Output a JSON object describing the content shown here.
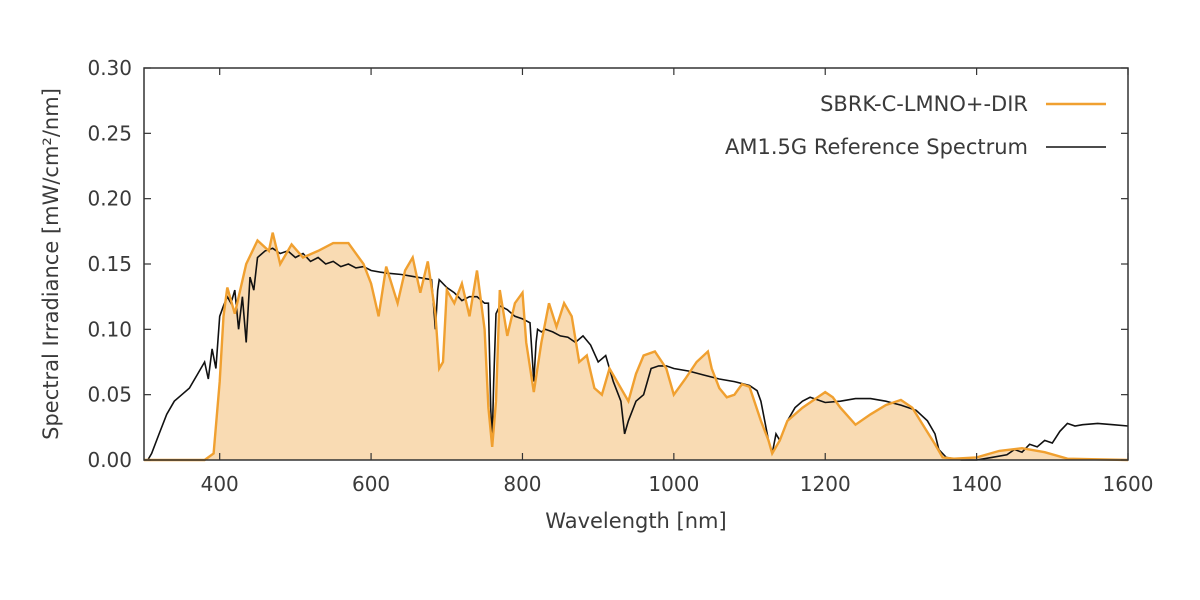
{
  "chart_data": {
    "type": "line",
    "xlabel": "Wavelength [nm]",
    "ylabel": "Spectral Irradiance [mW/cm²/nm]",
    "xlim": [
      300,
      1600
    ],
    "ylim": [
      0,
      0.3
    ],
    "xticks": [
      "400",
      "600",
      "800",
      "1000",
      "1200",
      "1400",
      "1600"
    ],
    "yticks": [
      "0.00",
      "0.05",
      "0.10",
      "0.15",
      "0.20",
      "0.25",
      "0.30"
    ],
    "grid": false,
    "legend_position": "top-right",
    "series": [
      {
        "name": "SBRK-C-LMNO+-DIR",
        "color": "#f0a030",
        "fill": "#f9dbb3",
        "x": [
          300,
          380,
          392,
          400,
          405,
          410,
          420,
          435,
          450,
          465,
          470,
          480,
          495,
          510,
          530,
          550,
          570,
          590,
          600,
          610,
          620,
          635,
          645,
          655,
          665,
          675,
          685,
          690,
          695,
          700,
          710,
          720,
          730,
          740,
          750,
          755,
          760,
          765,
          770,
          780,
          790,
          800,
          805,
          815,
          825,
          835,
          845,
          855,
          865,
          875,
          885,
          895,
          905,
          915,
          925,
          940,
          950,
          960,
          975,
          990,
          1000,
          1015,
          1030,
          1045,
          1050,
          1060,
          1070,
          1080,
          1090,
          1100,
          1115,
          1125,
          1130,
          1140,
          1150,
          1170,
          1190,
          1200,
          1210,
          1220,
          1240,
          1260,
          1280,
          1300,
          1315,
          1330,
          1345,
          1355,
          1370,
          1400,
          1430,
          1460,
          1490,
          1520,
          1600
        ],
        "y": [
          0.0,
          0.0,
          0.005,
          0.06,
          0.11,
          0.132,
          0.112,
          0.15,
          0.168,
          0.16,
          0.174,
          0.15,
          0.165,
          0.155,
          0.16,
          0.166,
          0.166,
          0.15,
          0.135,
          0.11,
          0.148,
          0.12,
          0.145,
          0.155,
          0.128,
          0.152,
          0.112,
          0.07,
          0.075,
          0.13,
          0.12,
          0.135,
          0.11,
          0.145,
          0.1,
          0.04,
          0.01,
          0.045,
          0.13,
          0.095,
          0.12,
          0.128,
          0.09,
          0.052,
          0.09,
          0.12,
          0.102,
          0.12,
          0.11,
          0.075,
          0.08,
          0.055,
          0.05,
          0.07,
          0.06,
          0.045,
          0.066,
          0.08,
          0.083,
          0.07,
          0.05,
          0.062,
          0.075,
          0.083,
          0.07,
          0.055,
          0.048,
          0.05,
          0.058,
          0.056,
          0.03,
          0.015,
          0.005,
          0.015,
          0.03,
          0.04,
          0.048,
          0.052,
          0.048,
          0.04,
          0.027,
          0.035,
          0.042,
          0.046,
          0.04,
          0.026,
          0.012,
          0.002,
          0.001,
          0.002,
          0.007,
          0.009,
          0.006,
          0.001,
          0.0
        ]
      },
      {
        "name": "AM1.5G Reference Spectrum",
        "color": "#111111",
        "x": [
          300,
          305,
          310,
          320,
          330,
          340,
          350,
          360,
          370,
          380,
          385,
          390,
          395,
          400,
          405,
          410,
          415,
          420,
          425,
          430,
          435,
          440,
          445,
          450,
          460,
          470,
          480,
          490,
          500,
          510,
          520,
          530,
          540,
          550,
          560,
          570,
          580,
          590,
          600,
          620,
          640,
          660,
          680,
          685,
          688,
          690,
          700,
          710,
          720,
          730,
          740,
          750,
          755,
          758,
          760,
          762,
          765,
          770,
          780,
          790,
          800,
          810,
          815,
          818,
          820,
          825,
          830,
          840,
          850,
          860,
          870,
          880,
          890,
          900,
          910,
          920,
          930,
          935,
          940,
          950,
          960,
          970,
          980,
          990,
          1000,
          1020,
          1040,
          1060,
          1080,
          1100,
          1110,
          1115,
          1120,
          1125,
          1130,
          1135,
          1140,
          1150,
          1160,
          1170,
          1180,
          1190,
          1200,
          1220,
          1240,
          1260,
          1280,
          1300,
          1320,
          1335,
          1345,
          1350,
          1360,
          1380,
          1400,
          1420,
          1440,
          1450,
          1460,
          1470,
          1480,
          1490,
          1500,
          1510,
          1520,
          1530,
          1540,
          1560,
          1580,
          1600
        ],
        "y": [
          0.0,
          0.0,
          0.005,
          0.02,
          0.035,
          0.045,
          0.05,
          0.055,
          0.065,
          0.075,
          0.062,
          0.085,
          0.07,
          0.11,
          0.118,
          0.125,
          0.12,
          0.13,
          0.1,
          0.125,
          0.09,
          0.14,
          0.13,
          0.155,
          0.16,
          0.162,
          0.158,
          0.16,
          0.155,
          0.158,
          0.152,
          0.155,
          0.15,
          0.152,
          0.148,
          0.15,
          0.147,
          0.148,
          0.145,
          0.143,
          0.142,
          0.14,
          0.138,
          0.1,
          0.13,
          0.138,
          0.132,
          0.128,
          0.122,
          0.125,
          0.125,
          0.12,
          0.12,
          0.04,
          0.015,
          0.06,
          0.112,
          0.118,
          0.115,
          0.11,
          0.108,
          0.105,
          0.06,
          0.09,
          0.1,
          0.098,
          0.1,
          0.098,
          0.095,
          0.094,
          0.09,
          0.095,
          0.088,
          0.075,
          0.08,
          0.06,
          0.045,
          0.02,
          0.03,
          0.045,
          0.05,
          0.07,
          0.072,
          0.072,
          0.07,
          0.068,
          0.065,
          0.062,
          0.06,
          0.057,
          0.053,
          0.045,
          0.03,
          0.015,
          0.005,
          0.02,
          0.015,
          0.03,
          0.04,
          0.045,
          0.048,
          0.046,
          0.044,
          0.045,
          0.047,
          0.047,
          0.045,
          0.042,
          0.038,
          0.03,
          0.02,
          0.008,
          0.002,
          0.0,
          0.0,
          0.002,
          0.004,
          0.008,
          0.006,
          0.012,
          0.01,
          0.015,
          0.013,
          0.022,
          0.028,
          0.026,
          0.027,
          0.028,
          0.027,
          0.026
        ]
      }
    ]
  }
}
